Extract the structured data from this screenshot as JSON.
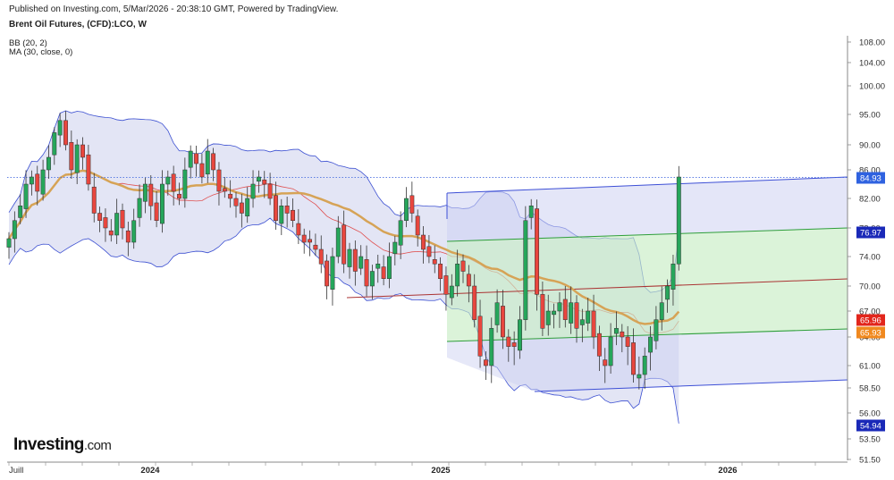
{
  "header": {
    "published": "Published on Investing.com, 5/Mar/2026 - 20:38:10 GMT, Powered by TradingView.",
    "title": "Brent Oil Futures, (CFD):LCO, W",
    "indicator_bb": "BB (20, 2)",
    "indicator_ma": "MA (30, close, 0)"
  },
  "logo": {
    "main": "Investing",
    "suffix": ".com"
  },
  "colors": {
    "up": "#26a65b",
    "down": "#e8463e",
    "band_fill": "#d9dcf2",
    "band_line": "#3b4fd1",
    "ma_line": "#d6a356",
    "channel_upper": "#3d4fd6",
    "channel_mid": "#cdd2f2",
    "channel_low": "#c7ecc5"
  },
  "chart_data": {
    "type": "candlestick",
    "title": "Brent Oil Futures, (CFD):LCO, W",
    "x_ticks": [
      "Juill",
      "2024",
      "2025",
      "2026"
    ],
    "y_ticks": [
      "108.00",
      "104.00",
      "100.00",
      "95.00",
      "90.00",
      "86.00",
      "82.00",
      "78.00",
      "74.00",
      "70.00",
      "67.00",
      "64.00",
      "61.00",
      "58.50",
      "56.00",
      "53.50",
      "51.50"
    ],
    "y_scale": "log",
    "ylim": [
      51.5,
      108
    ],
    "badges": [
      {
        "value": "84.93",
        "color": "#2f62e0"
      },
      {
        "value": "76.97",
        "color": "#1a29b8"
      },
      {
        "value": "65.96",
        "color": "#e2261c"
      },
      {
        "value": "65.93",
        "color": "#f0891f"
      },
      {
        "value": "54.94",
        "color": "#1a29b8"
      }
    ],
    "last_price": 84.93,
    "candle_closes": [
      76.5,
      79,
      81,
      84,
      85,
      83,
      86,
      88,
      92,
      94,
      90,
      86,
      90,
      88,
      84,
      80,
      79,
      78,
      77,
      80,
      78,
      76,
      79,
      82,
      84,
      81,
      79,
      84,
      85,
      83,
      82,
      86,
      89,
      87,
      85,
      89,
      86,
      83,
      83,
      82,
      81,
      80,
      82,
      84,
      85,
      84,
      82,
      79,
      81,
      80,
      79,
      77,
      76,
      76,
      75,
      73,
      70,
      74,
      78,
      73,
      75,
      72,
      74,
      70,
      72,
      73,
      71,
      74,
      76,
      79,
      82,
      80,
      77,
      75,
      74,
      73,
      71,
      69,
      70,
      73,
      72,
      70,
      66,
      62,
      61,
      65,
      68,
      64,
      63,
      63,
      66,
      79,
      81,
      69,
      65,
      67,
      67,
      68,
      66,
      68,
      65,
      66,
      67,
      64,
      62,
      61,
      64,
      65,
      64,
      63,
      60,
      60,
      62,
      64,
      66,
      68,
      70,
      73,
      85
    ]
  }
}
